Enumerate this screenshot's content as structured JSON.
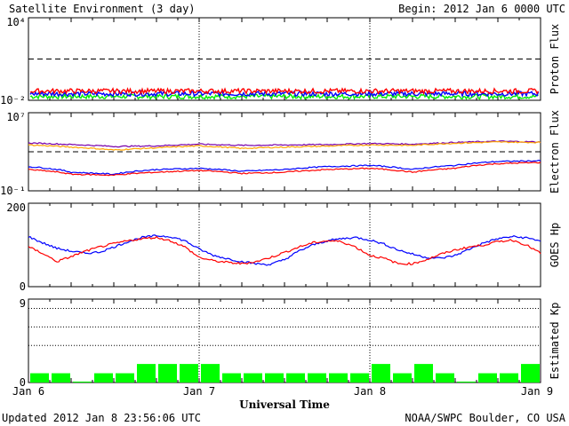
{
  "header": {
    "title": "Satellite Environment (3 day)",
    "begin": "Begin:  2012 Jan 6 0000 UTC"
  },
  "footer": {
    "updated": "Updated 2012 Jan  8 23:56:06 UTC",
    "source": "NOAA/SWPC Boulder, CO USA"
  },
  "chart_data": [
    {
      "type": "line",
      "ylabel": "Proton Flux",
      "y_scale": "log",
      "yticks": [
        "10⁴",
        "10⁻²"
      ],
      "ylim": [
        0.01,
        10000
      ],
      "threshold": 10,
      "series": [
        {
          "color": "#ff0000",
          "level": 0.047
        },
        {
          "color": "#0000ff",
          "level": 0.03
        },
        {
          "color": "#00ee00",
          "level": 0.019
        }
      ]
    },
    {
      "type": "line",
      "ylabel": "Electron Flux",
      "y_scale": "log",
      "yticks": [
        "10⁷",
        "10⁻¹"
      ],
      "ylim": [
        0.1,
        10000000
      ],
      "threshold": 1000,
      "x": [
        0,
        6,
        12,
        18,
        24,
        30,
        36,
        42,
        48,
        54,
        60,
        66,
        72
      ],
      "series": [
        {
          "color": "#7700aa",
          "values": [
            8000,
            5500,
            3500,
            4000,
            6000,
            4500,
            5000,
            5500,
            7000,
            6000,
            9000,
            12000,
            10000
          ]
        },
        {
          "color": "#ffa500",
          "values": [
            5000,
            3000,
            1500,
            2500,
            4000,
            2200,
            3000,
            3800,
            5000,
            4500,
            7500,
            10000,
            9000
          ]
        },
        {
          "color": "#0000ff",
          "values": [
            30,
            8,
            5,
            15,
            20,
            10,
            15,
            30,
            40,
            15,
            40,
            100,
            120
          ]
        },
        {
          "color": "#ff0000",
          "values": [
            15,
            5,
            4,
            8,
            12,
            6,
            8,
            15,
            20,
            8,
            20,
            60,
            80
          ]
        }
      ]
    },
    {
      "type": "line",
      "ylabel": "GOES Hp",
      "ylim": [
        0,
        200
      ],
      "yticks": [
        "200",
        "0"
      ],
      "x": [
        0,
        2,
        4,
        6,
        8,
        10,
        12,
        14,
        16,
        18,
        20,
        22,
        24,
        26,
        28,
        30,
        32,
        34,
        36,
        38,
        40,
        42,
        44,
        46,
        48,
        50,
        52,
        54,
        56,
        58,
        60,
        62,
        64,
        66,
        68,
        70,
        72
      ],
      "series": [
        {
          "color": "#0000ff",
          "values": [
            120,
            105,
            92,
            85,
            80,
            83,
            95,
            108,
            118,
            122,
            120,
            110,
            90,
            75,
            67,
            60,
            55,
            53,
            65,
            85,
            100,
            110,
            115,
            118,
            112,
            102,
            88,
            78,
            70,
            68,
            75,
            90,
            105,
            115,
            120,
            117,
            110
          ]
        },
        {
          "color": "#ff0000",
          "values": [
            95,
            80,
            60,
            72,
            85,
            95,
            103,
            110,
            115,
            118,
            110,
            95,
            70,
            62,
            58,
            55,
            60,
            70,
            82,
            95,
            105,
            110,
            108,
            95,
            75,
            68,
            55,
            55,
            65,
            78,
            88,
            95,
            100,
            108,
            112,
            100,
            80
          ]
        }
      ]
    },
    {
      "type": "bar",
      "ylabel": "Estimated Kp",
      "ylim": [
        0,
        9
      ],
      "yticks": [
        "9",
        "0"
      ],
      "gridlines": [
        4,
        6,
        8
      ],
      "bar_color": "#00ff00",
      "values": [
        1,
        1,
        0,
        1,
        1,
        2,
        2,
        2,
        2,
        1,
        1,
        1,
        1,
        1,
        1,
        1,
        2,
        1,
        2,
        1,
        0,
        1,
        1,
        2
      ]
    }
  ],
  "xaxis": {
    "label": "Universal Time",
    "ticks": [
      "Jan 6",
      "Jan 7",
      "Jan 8",
      "Jan 9"
    ]
  }
}
